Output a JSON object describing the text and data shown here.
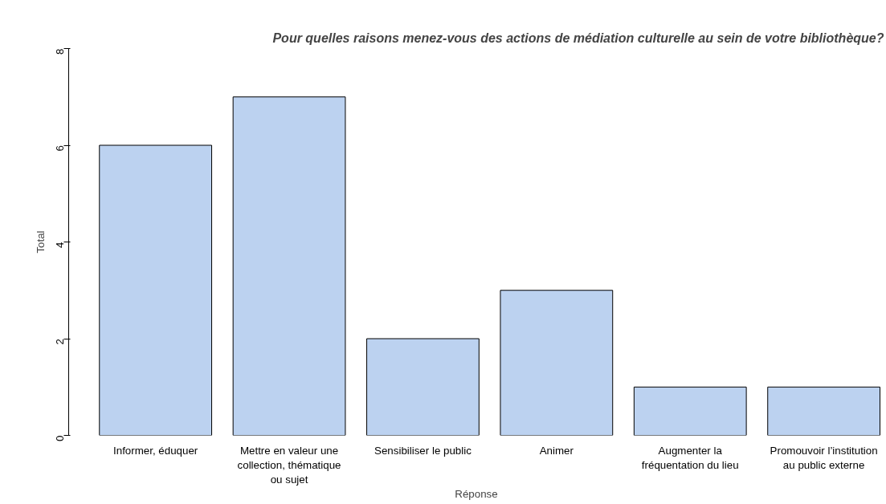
{
  "chart_data": {
    "type": "bar",
    "title": "Pour quelles raisons menez-vous des actions de médiation culturelle au sein de votre bibliothèque?",
    "xlabel": "Réponse",
    "ylabel": "Total",
    "categories": [
      "Informer, éduquer",
      "Mettre en valeur une collection, thématique ou sujet",
      "Sensibiliser le public",
      "Animer",
      "Augmenter la fréquentation du lieu",
      "Promouvoir l’institution au public externe"
    ],
    "values": [
      6,
      7,
      2,
      3,
      1,
      1
    ],
    "color": "#bcd2f0",
    "ylim": [
      0,
      8
    ],
    "yticks": [
      0,
      2,
      4,
      6,
      8
    ],
    "grid": false
  }
}
